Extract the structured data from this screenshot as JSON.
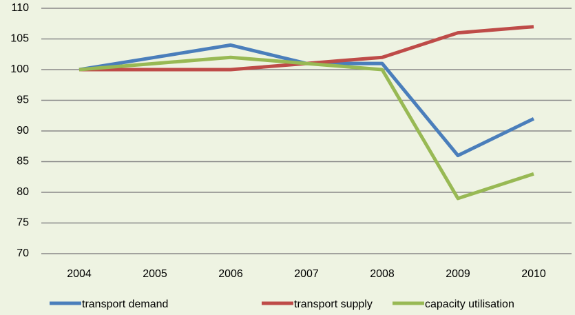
{
  "chart_data": {
    "type": "line",
    "categories": [
      "2004",
      "2005",
      "2006",
      "2007",
      "2008",
      "2009",
      "2010"
    ],
    "series": [
      {
        "name": "transport demand",
        "color": "#4a7ebb",
        "values": [
          100,
          102,
          104,
          101,
          101,
          86,
          92
        ]
      },
      {
        "name": "transport supply",
        "color": "#be4b48",
        "values": [
          100,
          100,
          100,
          101,
          102,
          106,
          107
        ]
      },
      {
        "name": "capacity utilisation",
        "color": "#98b954",
        "values": [
          100,
          101,
          102,
          101,
          100,
          79,
          83
        ]
      }
    ],
    "ylim": [
      70,
      110
    ],
    "yticks": [
      70,
      75,
      80,
      85,
      90,
      95,
      100,
      105,
      110
    ],
    "grid": true,
    "legend": "bottom"
  }
}
